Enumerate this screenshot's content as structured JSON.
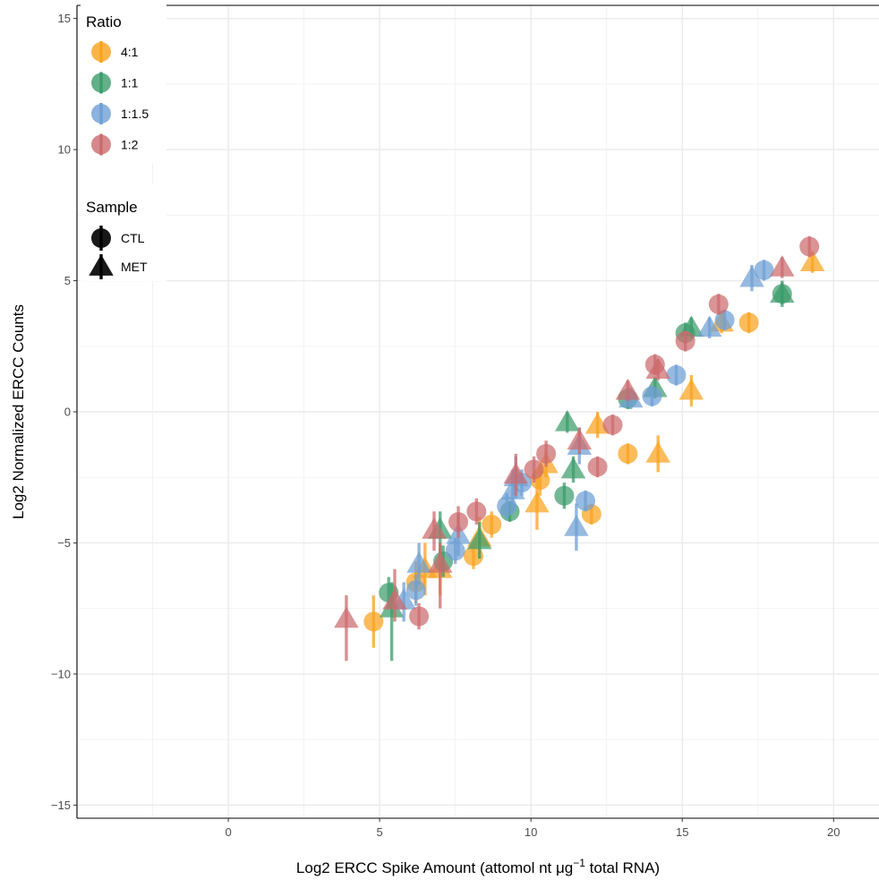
{
  "chart_data": {
    "type": "scatter",
    "xlabel": "Log2 ERCC Spike Amount (attomol nt μg",
    "xlabel_sup": "−1",
    "xlabel_tail": " total RNA)",
    "ylabel": "Log2 Normalized ERCC Counts",
    "xlim": [
      -5,
      21.5
    ],
    "ylim": [
      -15.5,
      15.5
    ],
    "x_ticks": [
      0,
      5,
      10,
      15,
      20
    ],
    "x_tick_labels": [
      "0",
      "5",
      "10",
      "15",
      "20"
    ],
    "y_ticks": [
      -15,
      -10,
      -5,
      0,
      5,
      10,
      15
    ],
    "y_tick_labels": [
      "−15",
      "−10",
      "−5",
      "0",
      "5",
      "10",
      "15"
    ],
    "grid": true,
    "legend": {
      "ratio_title": "Ratio",
      "ratio_items": [
        {
          "label": "4:1",
          "color": "#F9A21D"
        },
        {
          "label": "1:1",
          "color": "#3C9C6B"
        },
        {
          "label": "1:1.5",
          "color": "#6F9FD4"
        },
        {
          "label": "1:2",
          "color": "#CC6B6E"
        }
      ],
      "sample_title": "Sample",
      "sample_items": [
        {
          "label": "CTL",
          "shape": "circle"
        },
        {
          "label": "MET",
          "shape": "triangle"
        }
      ]
    },
    "series": [
      {
        "name": "4:1",
        "color": "#F9A21D",
        "points": [
          [
            4.8,
            -8.0,
            -9.0,
            -7.0,
            "circle"
          ],
          [
            6.2,
            -6.5,
            -7.3,
            -5.7,
            "circle"
          ],
          [
            6.5,
            -6.0,
            -7.0,
            -5.0,
            "triangle"
          ],
          [
            7.0,
            -6.0,
            -7.0,
            -5.0,
            "triangle"
          ],
          [
            8.1,
            -5.5,
            -6.0,
            -5.0,
            "circle"
          ],
          [
            8.3,
            -4.8,
            -5.6,
            -4.0,
            "triangle"
          ],
          [
            8.7,
            -4.3,
            -4.8,
            -3.8,
            "circle"
          ],
          [
            10.2,
            -3.5,
            -4.5,
            -2.5,
            "triangle"
          ],
          [
            10.5,
            -2.0,
            -2.5,
            -1.5,
            "triangle"
          ],
          [
            10.3,
            -2.6,
            -3.2,
            -2.0,
            "circle"
          ],
          [
            12.0,
            -3.9,
            -4.3,
            -3.5,
            "circle"
          ],
          [
            12.2,
            -0.5,
            -1.0,
            0.0,
            "triangle"
          ],
          [
            13.2,
            -1.6,
            -2.0,
            -1.2,
            "circle"
          ],
          [
            14.2,
            -1.6,
            -2.3,
            -0.9,
            "triangle"
          ],
          [
            15.3,
            0.8,
            0.2,
            1.4,
            "triangle"
          ],
          [
            16.3,
            3.4,
            3.0,
            3.8,
            "triangle"
          ],
          [
            17.2,
            3.4,
            3.0,
            3.8,
            "circle"
          ],
          [
            19.3,
            5.7,
            5.3,
            6.1,
            "triangle"
          ]
        ]
      },
      {
        "name": "1:1",
        "color": "#3C9C6B",
        "points": [
          [
            5.3,
            -6.9,
            -7.5,
            -6.3,
            "circle"
          ],
          [
            5.4,
            -7.5,
            -9.5,
            -6.5,
            "triangle"
          ],
          [
            7.0,
            -4.5,
            -5.5,
            -3.8,
            "triangle"
          ],
          [
            7.1,
            -5.7,
            -6.3,
            -5.1,
            "circle"
          ],
          [
            8.3,
            -4.9,
            -5.6,
            -4.2,
            "triangle"
          ],
          [
            9.3,
            -3.8,
            -4.2,
            -3.4,
            "circle"
          ],
          [
            11.1,
            -3.2,
            -3.7,
            -2.7,
            "circle"
          ],
          [
            11.2,
            -0.4,
            -0.8,
            0.0,
            "triangle"
          ],
          [
            11.4,
            -2.2,
            -2.7,
            -1.7,
            "triangle"
          ],
          [
            13.2,
            0.5,
            0.1,
            0.9,
            "circle"
          ],
          [
            14.1,
            0.9,
            0.5,
            1.3,
            "triangle"
          ],
          [
            15.1,
            3.0,
            2.6,
            3.4,
            "circle"
          ],
          [
            15.3,
            3.2,
            2.8,
            3.6,
            "triangle"
          ],
          [
            18.3,
            4.5,
            4.0,
            5.0,
            "triangle"
          ],
          [
            18.3,
            4.5,
            4.1,
            4.9,
            "circle"
          ]
        ]
      },
      {
        "name": "1:1.5",
        "color": "#6F9FD4",
        "points": [
          [
            5.8,
            -7.2,
            -8.0,
            -6.5,
            "triangle"
          ],
          [
            6.2,
            -6.8,
            -7.4,
            -6.2,
            "circle"
          ],
          [
            6.3,
            -5.8,
            -6.6,
            -5.0,
            "triangle"
          ],
          [
            7.5,
            -5.3,
            -5.8,
            -4.8,
            "circle"
          ],
          [
            7.6,
            -4.7,
            -5.5,
            -3.9,
            "triangle"
          ],
          [
            9.2,
            -3.6,
            -4.1,
            -3.1,
            "circle"
          ],
          [
            9.4,
            -3.0,
            -3.8,
            -2.2,
            "triangle"
          ],
          [
            9.5,
            -2.5,
            -3.3,
            -1.7,
            "triangle"
          ],
          [
            9.7,
            -2.7,
            -3.2,
            -2.2,
            "circle"
          ],
          [
            11.5,
            -4.4,
            -5.3,
            -3.5,
            "triangle"
          ],
          [
            11.6,
            -1.3,
            -2.0,
            -0.6,
            "triangle"
          ],
          [
            11.8,
            -3.4,
            -3.8,
            -3.0,
            "circle"
          ],
          [
            13.3,
            0.5,
            0.1,
            0.9,
            "triangle"
          ],
          [
            14.0,
            0.6,
            0.2,
            1.0,
            "circle"
          ],
          [
            14.8,
            1.4,
            1.0,
            1.8,
            "circle"
          ],
          [
            15.9,
            3.2,
            2.8,
            3.6,
            "triangle"
          ],
          [
            16.4,
            3.5,
            3.1,
            3.9,
            "circle"
          ],
          [
            17.3,
            5.1,
            4.6,
            5.6,
            "triangle"
          ],
          [
            17.7,
            5.4,
            5.0,
            5.8,
            "circle"
          ]
        ]
      },
      {
        "name": "1:2",
        "color": "#CC6B6E",
        "points": [
          [
            3.9,
            -7.9,
            -9.5,
            -7.0,
            "triangle"
          ],
          [
            5.5,
            -7.2,
            -8.0,
            -6.0,
            "triangle"
          ],
          [
            6.3,
            -7.8,
            -8.3,
            -7.3,
            "circle"
          ],
          [
            6.8,
            -4.5,
            -5.3,
            -3.8,
            "triangle"
          ],
          [
            7.0,
            -5.8,
            -7.5,
            -5.0,
            "triangle"
          ],
          [
            7.6,
            -4.2,
            -4.8,
            -3.6,
            "circle"
          ],
          [
            8.2,
            -3.8,
            -4.3,
            -3.3,
            "circle"
          ],
          [
            9.5,
            -2.4,
            -3.2,
            -1.6,
            "triangle"
          ],
          [
            10.1,
            -2.2,
            -2.7,
            -1.7,
            "circle"
          ],
          [
            10.5,
            -1.6,
            -2.1,
            -1.1,
            "circle"
          ],
          [
            11.6,
            -1.1,
            -1.6,
            -0.6,
            "triangle"
          ],
          [
            12.2,
            -2.1,
            -2.5,
            -1.7,
            "circle"
          ],
          [
            12.7,
            -0.5,
            -0.9,
            -0.1,
            "circle"
          ],
          [
            13.2,
            0.8,
            0.4,
            1.2,
            "triangle"
          ],
          [
            14.1,
            1.8,
            1.4,
            2.2,
            "circle"
          ],
          [
            14.2,
            1.6,
            1.2,
            2.0,
            "triangle"
          ],
          [
            15.1,
            2.7,
            2.3,
            3.1,
            "circle"
          ],
          [
            16.2,
            4.1,
            3.7,
            4.5,
            "circle"
          ],
          [
            18.3,
            5.5,
            5.1,
            5.9,
            "triangle"
          ],
          [
            19.2,
            6.3,
            5.9,
            6.7,
            "circle"
          ]
        ]
      }
    ]
  }
}
